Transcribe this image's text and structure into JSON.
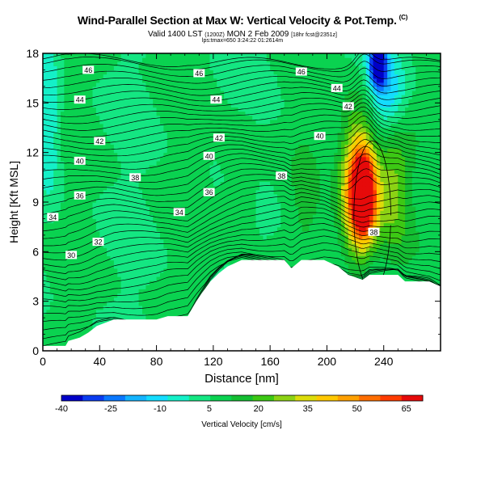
{
  "header": {
    "title_main": "Wind-Parallel Section at Max W: Vertical Velocity & Pot.Temp.",
    "title_copyright": "(C)",
    "valid_main": "Valid 1400 LST",
    "valid_small1": "(1200Z)",
    "valid_date": "MON 2 Feb 2009",
    "valid_small2": "[18hr fcst@2351z]",
    "sub_info": "lps:tmax=650 3:24:22 01:2614m"
  },
  "colors": {
    "ramp": [
      "#0000c8",
      "#0a3cf0",
      "#0a78ff",
      "#14b4ff",
      "#14dcff",
      "#14f0c8",
      "#14e682",
      "#0ad250",
      "#14be32",
      "#3cc814",
      "#8cd214",
      "#dcdc0a",
      "#ffc800",
      "#ffa000",
      "#ff6e00",
      "#ff3c00",
      "#e60a0a"
    ],
    "ground": "#ffffff",
    "contour": "#000000"
  },
  "chart_data": {
    "type": "contour",
    "xlabel": "Distance [nm]",
    "ylabel": "Height [Kft MSL]",
    "xlim": [
      0,
      280
    ],
    "ylim": [
      0,
      18
    ],
    "x_ticks": [
      "0",
      "40",
      "80",
      "120",
      "160",
      "200",
      "240"
    ],
    "y_ticks": [
      "0",
      "3",
      "6",
      "9",
      "12",
      "15",
      "18"
    ],
    "colorbar": {
      "label": "Vertical Velocity [cm/s]",
      "tick_labels": [
        "-40",
        "-25",
        "-10",
        "5",
        "20",
        "35",
        "50",
        "65"
      ],
      "range": [
        -40,
        70
      ]
    },
    "theta_contour_labels": [
      {
        "text": "46",
        "x": 32,
        "y": 17.0
      },
      {
        "text": "46",
        "x": 110,
        "y": 16.8
      },
      {
        "text": "46",
        "x": 182,
        "y": 16.9
      },
      {
        "text": "44",
        "x": 26,
        "y": 15.2
      },
      {
        "text": "44",
        "x": 122,
        "y": 15.2
      },
      {
        "text": "44",
        "x": 207,
        "y": 15.9
      },
      {
        "text": "42",
        "x": 40,
        "y": 12.7
      },
      {
        "text": "42",
        "x": 124,
        "y": 12.9
      },
      {
        "text": "42",
        "x": 215,
        "y": 14.8
      },
      {
        "text": "40",
        "x": 26,
        "y": 11.5
      },
      {
        "text": "40",
        "x": 117,
        "y": 11.8
      },
      {
        "text": "40",
        "x": 195,
        "y": 13.0
      },
      {
        "text": "38",
        "x": 65,
        "y": 10.5
      },
      {
        "text": "38",
        "x": 168,
        "y": 10.6
      },
      {
        "text": "38",
        "x": 233,
        "y": 7.2
      },
      {
        "text": "36",
        "x": 26,
        "y": 9.4
      },
      {
        "text": "36",
        "x": 117,
        "y": 9.6
      },
      {
        "text": "34",
        "x": 7,
        "y": 8.1
      },
      {
        "text": "34",
        "x": 96,
        "y": 8.4
      },
      {
        "text": "32",
        "x": 39,
        "y": 6.6
      },
      {
        "text": "30",
        "x": 20,
        "y": 5.8
      }
    ]
  }
}
